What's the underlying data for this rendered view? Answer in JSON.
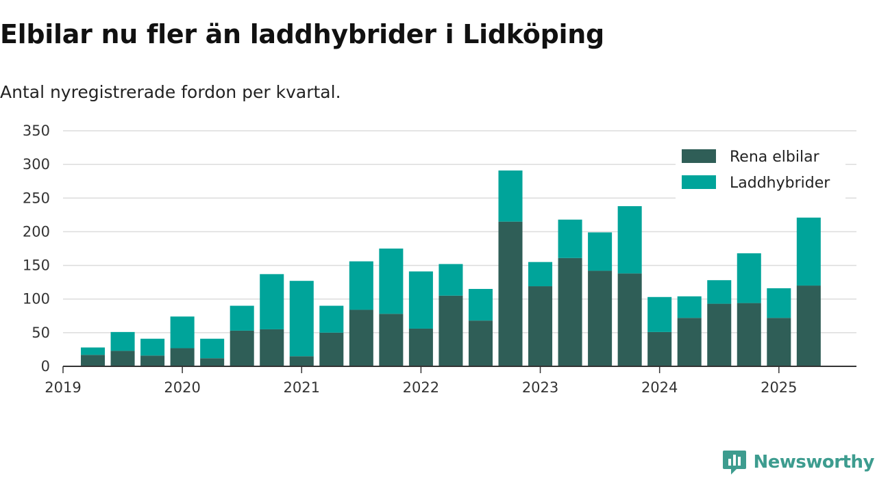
{
  "title": "Elbilar nu fler än laddhybrider i Lidköping",
  "subtitle": "Antal nyregistrerade fordon per kvartal.",
  "brand": {
    "name": "Newsworthy",
    "icon": "newsworthy-logo-icon",
    "color": "#3d9c8f"
  },
  "chart_data": {
    "type": "bar",
    "stacked": true,
    "x_axis": {
      "type": "time",
      "min": 2019.0,
      "max": 2025.65,
      "ticks": [
        {
          "value": 2019,
          "label": "2019"
        },
        {
          "value": 2020,
          "label": "2020"
        },
        {
          "value": 2021,
          "label": "2021"
        },
        {
          "value": 2022,
          "label": "2022"
        },
        {
          "value": 2023,
          "label": "2023"
        },
        {
          "value": 2024,
          "label": "2024"
        },
        {
          "value": 2025,
          "label": "2025"
        }
      ]
    },
    "y_axis": {
      "min": 0,
      "max": 350,
      "ticks": [
        0,
        50,
        100,
        150,
        200,
        250,
        300,
        350
      ]
    },
    "grid": true,
    "legend_position": "top-right",
    "categories": [
      "2019 Q2",
      "2019 Q3",
      "2019 Q4",
      "2020 Q1",
      "2020 Q2",
      "2020 Q3",
      "2020 Q4",
      "2021 Q1",
      "2021 Q2",
      "2021 Q3",
      "2021 Q4",
      "2022 Q1",
      "2022 Q2",
      "2022 Q3",
      "2022 Q4",
      "2023 Q1",
      "2023 Q2",
      "2023 Q3",
      "2023 Q4",
      "2024 Q1",
      "2024 Q2",
      "2024 Q3",
      "2024 Q4",
      "2025 Q1",
      "2025 Q2"
    ],
    "x": [
      2019.25,
      2019.5,
      2019.75,
      2020.0,
      2020.25,
      2020.5,
      2020.75,
      2021.0,
      2021.25,
      2021.5,
      2021.75,
      2022.0,
      2022.25,
      2022.5,
      2022.75,
      2023.0,
      2023.25,
      2023.5,
      2023.75,
      2024.0,
      2024.25,
      2024.5,
      2024.75,
      2025.0,
      2025.25
    ],
    "series": [
      {
        "name": "Rena elbilar",
        "color": "#2f5e57",
        "values": [
          17,
          23,
          16,
          27,
          12,
          53,
          55,
          15,
          50,
          84,
          78,
          56,
          105,
          68,
          215,
          119,
          161,
          142,
          138,
          51,
          72,
          93,
          94,
          72,
          120
        ]
      },
      {
        "name": "Laddhybrider",
        "color": "#00a49a",
        "values": [
          11,
          28,
          25,
          47,
          29,
          37,
          82,
          112,
          40,
          72,
          97,
          85,
          47,
          47,
          76,
          36,
          57,
          57,
          100,
          52,
          32,
          35,
          74,
          44,
          101
        ]
      }
    ]
  }
}
